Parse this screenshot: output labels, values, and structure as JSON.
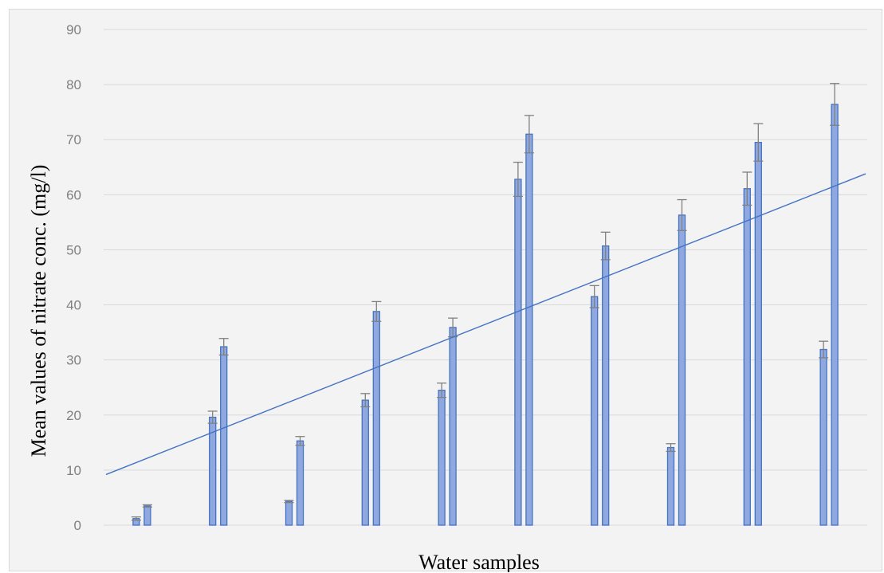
{
  "chart_data": {
    "type": "bar",
    "xlabel": "Water samples",
    "ylabel": "Mean values of nitrate conc. (mg/l)",
    "ylim": [
      0,
      90
    ],
    "y_ticks": [
      "0",
      "10",
      "20",
      "30",
      "40",
      "50",
      "60",
      "70",
      "80",
      "90"
    ],
    "grid": true,
    "legend": "none",
    "categories": [
      "",
      "",
      "",
      "",
      "",
      "",
      "",
      "",
      "",
      ""
    ],
    "series": [
      {
        "values": [
          1.2,
          19.6,
          4.3,
          22.7,
          24.5,
          62.8,
          41.5,
          14.1,
          61.1,
          31.9
        ],
        "errors": [
          0.3,
          1.1,
          0.2,
          1.2,
          1.3,
          3.1,
          2.0,
          0.7,
          3.0,
          1.5
        ]
      },
      {
        "values": [
          3.5,
          32.4,
          15.3,
          38.8,
          35.9,
          71.0,
          50.7,
          56.3,
          69.5,
          76.4
        ],
        "errors": [
          0.2,
          1.5,
          0.8,
          1.8,
          1.7,
          3.4,
          2.5,
          2.8,
          3.4,
          3.8
        ]
      }
    ],
    "trendline": {
      "start": 9.2,
      "end": 63.8
    },
    "colors": {
      "bar_fill": "#8fa9e0",
      "bar_stroke": "#4472c4",
      "error_bar": "#808080",
      "trendline": "#4472c4",
      "grid": "#d9d9d9"
    }
  }
}
